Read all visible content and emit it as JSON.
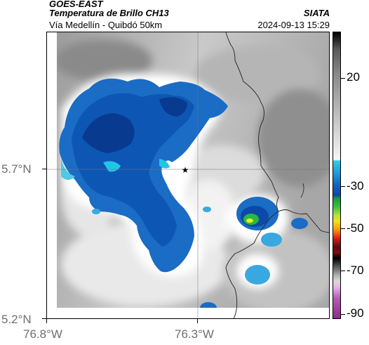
{
  "header": {
    "source": "GOES-EAST",
    "product": "Temperatura de Brillo CH13",
    "region": "Vía Medellín - Quibdó 50km",
    "org": "SIATA",
    "datetime": "2024-09-13 15:29"
  },
  "axes": {
    "lat_labels": [
      "5.7°N",
      "5.2°N"
    ],
    "lon_labels": [
      "76.8°W",
      "76.3°W"
    ]
  },
  "colorbar": {
    "ticks": [
      "20",
      "-30",
      "-50",
      "-70",
      "-90"
    ]
  },
  "colors": {
    "cloud_blue_dark": "#0b3f9e",
    "cloud_blue": "#1a6cc4",
    "cloud_cyan": "#20c6e6",
    "convective_green": "#2bb840",
    "convective_yellow": "#e5f02a"
  },
  "marker": {
    "symbol": "★"
  }
}
